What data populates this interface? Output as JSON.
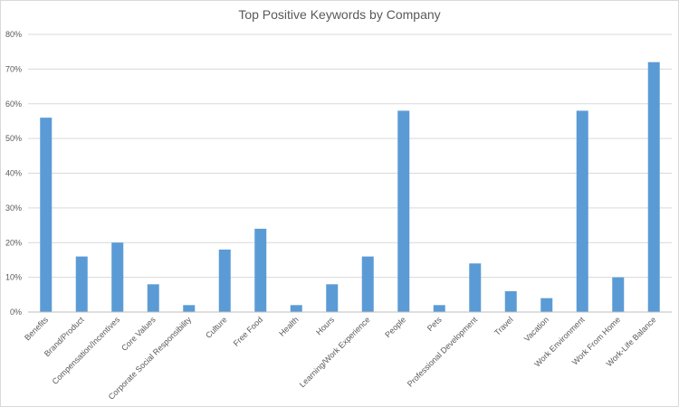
{
  "chart_data": {
    "type": "bar",
    "title": "Top Positive Keywords by Company",
    "xlabel": "",
    "ylabel": "",
    "categories": [
      "Benefits",
      "Brand/Product",
      "Compensation/Incentives",
      "Core Values",
      "Corporate Social Responsibility",
      "Culture",
      "Free Food",
      "Health",
      "Hours",
      "Learning/Work Experience",
      "People",
      "Pets",
      "Professional Development",
      "Travel",
      "Vacation",
      "Work Environment",
      "Work From Home",
      "Work-Life Balance"
    ],
    "values": [
      56,
      16,
      20,
      8,
      2,
      18,
      24,
      2,
      8,
      16,
      58,
      2,
      14,
      6,
      4,
      58,
      10,
      72
    ],
    "ylim": [
      0,
      80
    ],
    "yticks": [
      0,
      10,
      20,
      30,
      40,
      50,
      60,
      70,
      80
    ],
    "ytick_labels": [
      "0%",
      "10%",
      "20%",
      "30%",
      "40%",
      "50%",
      "60%",
      "70%",
      "80%"
    ],
    "grid": true,
    "legend": "none",
    "colors": {
      "bar": "#5b9bd5",
      "grid": "#d9d9d9",
      "axis": "#bfbfbf",
      "text": "#595959"
    }
  }
}
